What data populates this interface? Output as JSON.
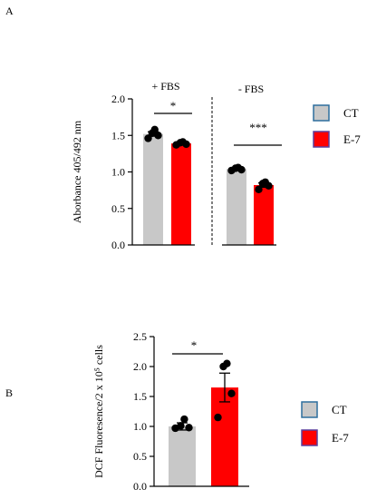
{
  "panels": {
    "a_label": "A",
    "b_label": "B"
  },
  "colors": {
    "ct_fill": "#c8c8c8",
    "e7_fill": "#ff0000",
    "dot": "#000000",
    "legend_border": "#2e6f9e",
    "e7_legend_border": "#5a3f9e"
  },
  "chart_data": [
    {
      "type": "bar",
      "panel": "A",
      "ylabel": "Aborbance  405/492 nm",
      "ylim": [
        0,
        2.0
      ],
      "yticks": [
        "0.0",
        "0.5",
        "1.0",
        "1.5",
        "2.0"
      ],
      "groups": [
        {
          "label": "+ FBS",
          "significance": "*"
        },
        {
          "label": "- FBS",
          "significance": "***"
        }
      ],
      "legend": [
        "CT",
        "E-7"
      ],
      "legend_position": "right",
      "series": [
        {
          "name": "CT",
          "values": [
            1.52,
            1.04
          ],
          "sem": [
            0.03,
            0.02
          ],
          "points": [
            [
              1.46,
              1.5,
              1.53,
              1.58
            ],
            [
              1.02,
              1.03,
              1.05,
              1.06
            ]
          ]
        },
        {
          "name": "E-7",
          "values": [
            1.39,
            0.82
          ],
          "sem": [
            0.02,
            0.03
          ],
          "points": [
            [
              1.37,
              1.38,
              1.4,
              1.41
            ],
            [
              0.76,
              0.81,
              0.84,
              0.86
            ]
          ]
        }
      ]
    },
    {
      "type": "bar",
      "panel": "B",
      "ylabel": "DCF Fluoresence/2 x 10⁵ cells",
      "ylim": [
        0,
        2.5
      ],
      "yticks": [
        "0.0",
        "0.5",
        "1.0",
        "1.5",
        "2.0",
        "2.5"
      ],
      "significance": "*",
      "legend": [
        "CT",
        "E-7"
      ],
      "legend_position": "right",
      "series": [
        {
          "name": "CT",
          "value": 1.0,
          "sem": 0.06,
          "points": [
            0.97,
            0.98,
            1.01,
            1.12
          ]
        },
        {
          "name": "E-7",
          "value": 1.65,
          "sem": 0.24,
          "points": [
            1.15,
            1.55,
            2.0,
            2.05
          ]
        }
      ]
    }
  ]
}
